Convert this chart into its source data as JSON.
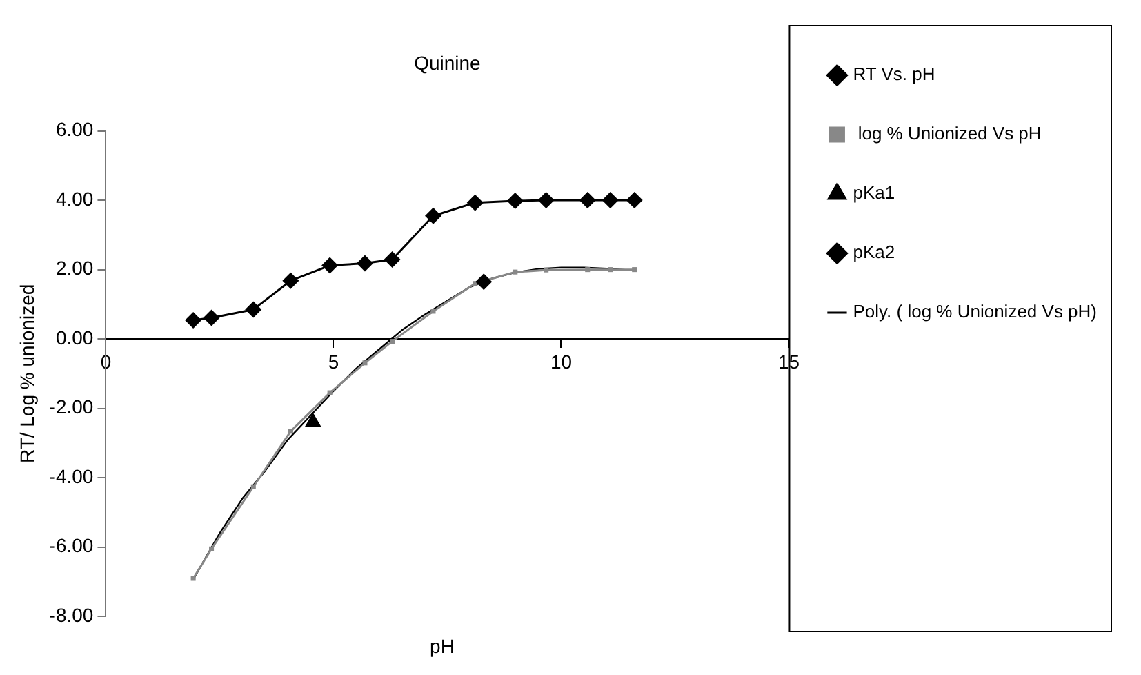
{
  "chart_data": {
    "type": "line",
    "title": "Quinine",
    "xlabel": "pH",
    "ylabel": "RT/ Log % unionized",
    "xlim": [
      0,
      15
    ],
    "xticks": [
      0,
      5,
      10,
      15
    ],
    "ylim": [
      -8,
      6
    ],
    "yticks": [
      {
        "value": -8,
        "label": "-8.00"
      },
      {
        "value": -6,
        "label": "-6.00"
      },
      {
        "value": -4,
        "label": "-4.00"
      },
      {
        "value": -2,
        "label": "-2.00"
      },
      {
        "value": 0,
        "label": "0.00"
      },
      {
        "value": 2,
        "label": "2.00"
      },
      {
        "value": 4,
        "label": "4.00"
      },
      {
        "value": 6,
        "label": "6.00"
      }
    ],
    "grid": false,
    "legend": "top right",
    "series": [
      {
        "name": "RT Vs. pH",
        "color": "#000000",
        "marker": "diamond",
        "x": [
          1.92,
          2.32,
          3.24,
          4.06,
          4.92,
          5.69,
          6.29,
          7.19,
          8.11,
          8.99,
          9.67,
          10.58,
          11.08,
          11.61
        ],
        "values": [
          0.54,
          0.61,
          0.85,
          1.68,
          2.12,
          2.18,
          2.29,
          3.55,
          3.93,
          3.98,
          4.0,
          4.0,
          4.0,
          4.0
        ]
      },
      {
        "name": " log % Unionized Vs pH",
        "color": "#888888",
        "marker": "square",
        "x": [
          1.92,
          2.32,
          3.24,
          4.06,
          4.92,
          5.69,
          6.29,
          7.19,
          8.11,
          8.99,
          9.67,
          10.58,
          11.08,
          11.61
        ],
        "values": [
          -6.9,
          -6.05,
          -4.26,
          -2.66,
          -1.55,
          -0.69,
          -0.07,
          0.8,
          1.6,
          1.93,
          1.99,
          2.0,
          2.0,
          2.0
        ]
      },
      {
        "name": "pKa1",
        "type": "scatter",
        "color": "#000000",
        "marker": "triangle",
        "x": [
          4.55
        ],
        "values": [
          -2.4
        ]
      },
      {
        "name": "pKa2",
        "type": "scatter",
        "color": "#000000",
        "marker": "diamond",
        "x": [
          8.3
        ],
        "values": [
          1.65
        ]
      },
      {
        "name": "Poly. ( log % Unionized Vs pH)",
        "color": "#000000",
        "marker": "none",
        "x": [
          1.92,
          2.5,
          3,
          3.5,
          4,
          4.5,
          5,
          5.5,
          6,
          6.5,
          7,
          7.5,
          8,
          8.5,
          9,
          9.5,
          10,
          10.5,
          11,
          11.61
        ],
        "values": [
          -6.93,
          -5.6,
          -4.6,
          -3.8,
          -2.9,
          -2.2,
          -1.5,
          -0.85,
          -0.3,
          0.25,
          0.7,
          1.1,
          1.5,
          1.75,
          1.92,
          2.02,
          2.06,
          2.06,
          2.03,
          1.97
        ]
      }
    ]
  }
}
